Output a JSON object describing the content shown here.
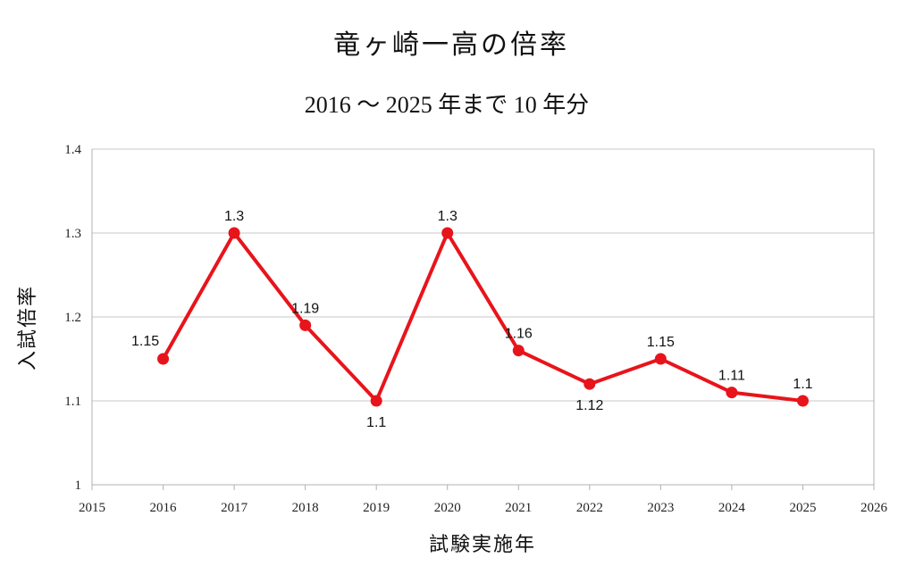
{
  "chart_data": {
    "type": "line",
    "title": "竜ヶ崎一高の倍率",
    "subtitle": "2016 ～ 2025 年まで 10 年分",
    "xlabel": "試験実施年",
    "ylabel": "入試倍率",
    "xlim": [
      2015,
      2026
    ],
    "ylim": [
      1,
      1.4
    ],
    "x_ticks": [
      "2015",
      "2016",
      "2017",
      "2018",
      "2019",
      "2020",
      "2021",
      "2022",
      "2023",
      "2024",
      "2025",
      "2026"
    ],
    "y_ticks": [
      "1",
      "1.1",
      "1.2",
      "1.3",
      "1.4"
    ],
    "grid": "horizontal",
    "series": [
      {
        "color": "#e8141b",
        "x": [
          2016,
          2017,
          2018,
          2019,
          2020,
          2021,
          2022,
          2023,
          2024,
          2025
        ],
        "values": [
          1.15,
          1.3,
          1.19,
          1.1,
          1.3,
          1.16,
          1.12,
          1.15,
          1.11,
          1.1
        ],
        "labels": [
          "1.15",
          "1.3",
          "1.19",
          "1.1",
          "1.3",
          "1.16",
          "1.12",
          "1.15",
          "1.11",
          "1.1"
        ]
      }
    ]
  }
}
